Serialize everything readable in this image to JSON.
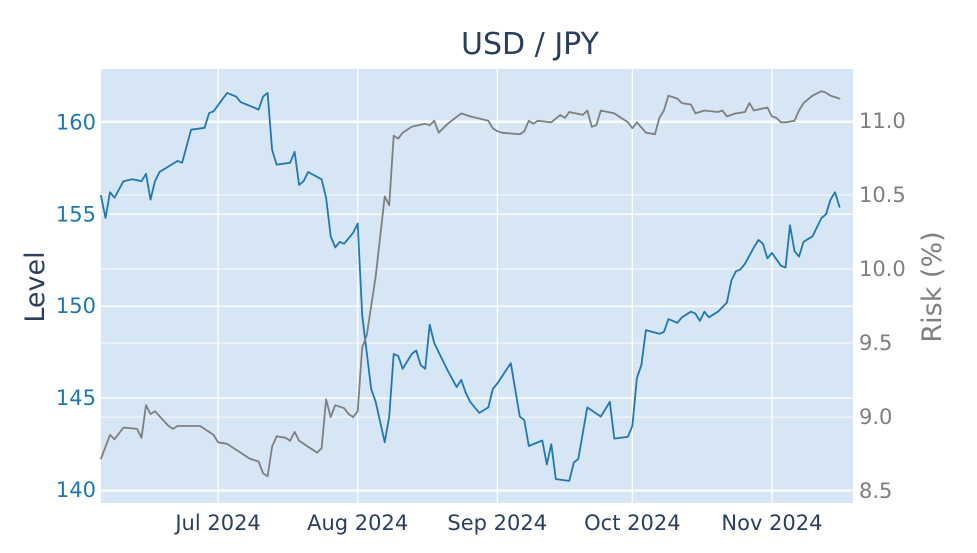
{
  "chart_data": {
    "type": "line",
    "title": "USD / JPY",
    "plot_background": "#d6e6f4",
    "grid": true,
    "legend": "none",
    "xaxis": {
      "type": "date",
      "range": [
        "2024-06-05",
        "2024-11-19"
      ],
      "ticks": [
        {
          "date": "2024-07-01",
          "label": "Jul 2024"
        },
        {
          "date": "2024-08-01",
          "label": "Aug 2024"
        },
        {
          "date": "2024-09-01",
          "label": "Sep 2024"
        },
        {
          "date": "2024-10-01",
          "label": "Oct 2024"
        },
        {
          "date": "2024-11-01",
          "label": "Nov 2024"
        }
      ]
    },
    "yaxis_left": {
      "title": "Level",
      "range": [
        139.3,
        162.9
      ],
      "ticks": [
        140,
        145,
        150,
        155,
        160
      ],
      "tick_labels": [
        "140",
        "145",
        "150",
        "155",
        "160"
      ],
      "color": "#1f77b4"
    },
    "yaxis_right": {
      "title": "Risk (%)",
      "range": [
        8.42,
        11.35
      ],
      "ticks": [
        8.5,
        9.0,
        9.5,
        10.0,
        10.5,
        11.0
      ],
      "tick_labels": [
        "8.5",
        "9.0",
        "9.5",
        "10.0",
        "10.5",
        "11.0"
      ],
      "color": "#7f7f7f"
    },
    "series": [
      {
        "axis": "left",
        "color": "#1f77b4",
        "points": [
          [
            "2024-06-05",
            156.0
          ],
          [
            "2024-06-06",
            154.8
          ],
          [
            "2024-06-07",
            156.2
          ],
          [
            "2024-06-08",
            155.9
          ],
          [
            "2024-06-10",
            156.8
          ],
          [
            "2024-06-12",
            156.9
          ],
          [
            "2024-06-14",
            156.8
          ],
          [
            "2024-06-15",
            157.2
          ],
          [
            "2024-06-16",
            155.8
          ],
          [
            "2024-06-17",
            156.8
          ],
          [
            "2024-06-18",
            157.3
          ],
          [
            "2024-06-20",
            157.6
          ],
          [
            "2024-06-22",
            157.9
          ],
          [
            "2024-06-23",
            157.8
          ],
          [
            "2024-06-25",
            159.6
          ],
          [
            "2024-06-28",
            159.7
          ],
          [
            "2024-06-29",
            160.5
          ],
          [
            "2024-06-30",
            160.6
          ],
          [
            "2024-07-03",
            161.6
          ],
          [
            "2024-07-05",
            161.4
          ],
          [
            "2024-07-06",
            161.1
          ],
          [
            "2024-07-10",
            160.7
          ],
          [
            "2024-07-11",
            161.4
          ],
          [
            "2024-07-12",
            161.6
          ],
          [
            "2024-07-13",
            158.5
          ],
          [
            "2024-07-14",
            157.7
          ],
          [
            "2024-07-17",
            157.8
          ],
          [
            "2024-07-18",
            158.4
          ],
          [
            "2024-07-19",
            156.6
          ],
          [
            "2024-07-20",
            156.8
          ],
          [
            "2024-07-21",
            157.3
          ],
          [
            "2024-07-24",
            156.9
          ],
          [
            "2024-07-25",
            155.9
          ],
          [
            "2024-07-26",
            153.8
          ],
          [
            "2024-07-27",
            153.2
          ],
          [
            "2024-07-28",
            153.5
          ],
          [
            "2024-07-29",
            153.4
          ],
          [
            "2024-07-31",
            154.0
          ],
          [
            "2024-08-01",
            154.5
          ],
          [
            "2024-08-02",
            149.5
          ],
          [
            "2024-08-03",
            147.5
          ],
          [
            "2024-08-04",
            145.5
          ],
          [
            "2024-08-05",
            144.8
          ],
          [
            "2024-08-07",
            142.6
          ],
          [
            "2024-08-08",
            144.0
          ],
          [
            "2024-08-09",
            147.4
          ],
          [
            "2024-08-10",
            147.3
          ],
          [
            "2024-08-11",
            146.6
          ],
          [
            "2024-08-13",
            147.4
          ],
          [
            "2024-08-14",
            147.6
          ],
          [
            "2024-08-15",
            146.8
          ],
          [
            "2024-08-16",
            146.6
          ],
          [
            "2024-08-17",
            149.0
          ],
          [
            "2024-08-18",
            148.0
          ],
          [
            "2024-08-21",
            146.5
          ],
          [
            "2024-08-23",
            145.6
          ],
          [
            "2024-08-24",
            146.0
          ],
          [
            "2024-08-25",
            145.3
          ],
          [
            "2024-08-26",
            144.8
          ],
          [
            "2024-08-28",
            144.2
          ],
          [
            "2024-08-30",
            144.5
          ],
          [
            "2024-08-31",
            145.5
          ],
          [
            "2024-09-01",
            145.8
          ],
          [
            "2024-09-04",
            146.9
          ],
          [
            "2024-09-06",
            144.0
          ],
          [
            "2024-09-07",
            143.8
          ],
          [
            "2024-09-08",
            142.4
          ],
          [
            "2024-09-11",
            142.7
          ],
          [
            "2024-09-12",
            141.4
          ],
          [
            "2024-09-13",
            142.5
          ],
          [
            "2024-09-14",
            140.6
          ],
          [
            "2024-09-17",
            140.5
          ],
          [
            "2024-09-18",
            141.5
          ],
          [
            "2024-09-19",
            141.7
          ],
          [
            "2024-09-21",
            144.5
          ],
          [
            "2024-09-24",
            144.0
          ],
          [
            "2024-09-26",
            144.8
          ],
          [
            "2024-09-27",
            142.8
          ],
          [
            "2024-09-30",
            142.9
          ],
          [
            "2024-10-01",
            143.5
          ],
          [
            "2024-10-02",
            146.1
          ],
          [
            "2024-10-03",
            146.8
          ],
          [
            "2024-10-04",
            148.7
          ],
          [
            "2024-10-07",
            148.5
          ],
          [
            "2024-10-08",
            148.6
          ],
          [
            "2024-10-09",
            149.3
          ],
          [
            "2024-10-10",
            149.2
          ],
          [
            "2024-10-11",
            149.1
          ],
          [
            "2024-10-12",
            149.4
          ],
          [
            "2024-10-14",
            149.7
          ],
          [
            "2024-10-15",
            149.6
          ],
          [
            "2024-10-16",
            149.2
          ],
          [
            "2024-10-17",
            149.7
          ],
          [
            "2024-10-18",
            149.4
          ],
          [
            "2024-10-20",
            149.7
          ],
          [
            "2024-10-22",
            150.2
          ],
          [
            "2024-10-23",
            151.4
          ],
          [
            "2024-10-24",
            151.9
          ],
          [
            "2024-10-25",
            152.0
          ],
          [
            "2024-10-26",
            152.3
          ],
          [
            "2024-10-28",
            153.2
          ],
          [
            "2024-10-29",
            153.6
          ],
          [
            "2024-10-30",
            153.4
          ],
          [
            "2024-10-31",
            152.6
          ],
          [
            "2024-11-01",
            152.9
          ],
          [
            "2024-11-03",
            152.2
          ],
          [
            "2024-11-04",
            152.1
          ],
          [
            "2024-11-05",
            154.4
          ],
          [
            "2024-11-06",
            153.0
          ],
          [
            "2024-11-07",
            152.7
          ],
          [
            "2024-11-08",
            153.5
          ],
          [
            "2024-11-10",
            153.8
          ],
          [
            "2024-11-12",
            154.8
          ],
          [
            "2024-11-13",
            155.0
          ],
          [
            "2024-11-14",
            155.8
          ],
          [
            "2024-11-15",
            156.2
          ],
          [
            "2024-11-16",
            155.4
          ]
        ]
      },
      {
        "axis": "right",
        "color": "#7f7f7f",
        "points": [
          [
            "2024-06-05",
            8.72
          ],
          [
            "2024-06-07",
            8.88
          ],
          [
            "2024-06-08",
            8.85
          ],
          [
            "2024-06-10",
            8.93
          ],
          [
            "2024-06-13",
            8.92
          ],
          [
            "2024-06-14",
            8.86
          ],
          [
            "2024-06-15",
            9.08
          ],
          [
            "2024-06-16",
            9.02
          ],
          [
            "2024-06-17",
            9.04
          ],
          [
            "2024-06-20",
            8.94
          ],
          [
            "2024-06-21",
            8.92
          ],
          [
            "2024-06-22",
            8.94
          ],
          [
            "2024-06-27",
            8.94
          ],
          [
            "2024-06-30",
            8.88
          ],
          [
            "2024-07-01",
            8.83
          ],
          [
            "2024-07-03",
            8.82
          ],
          [
            "2024-07-05",
            8.78
          ],
          [
            "2024-07-06",
            8.76
          ],
          [
            "2024-07-08",
            8.72
          ],
          [
            "2024-07-10",
            8.7
          ],
          [
            "2024-07-11",
            8.62
          ],
          [
            "2024-07-12",
            8.6
          ],
          [
            "2024-07-13",
            8.8
          ],
          [
            "2024-07-14",
            8.87
          ],
          [
            "2024-07-16",
            8.86
          ],
          [
            "2024-07-17",
            8.84
          ],
          [
            "2024-07-18",
            8.9
          ],
          [
            "2024-07-19",
            8.84
          ],
          [
            "2024-07-21",
            8.8
          ],
          [
            "2024-07-23",
            8.76
          ],
          [
            "2024-07-24",
            8.79
          ],
          [
            "2024-07-25",
            9.12
          ],
          [
            "2024-07-26",
            9.0
          ],
          [
            "2024-07-27",
            9.08
          ],
          [
            "2024-07-29",
            9.06
          ],
          [
            "2024-07-30",
            9.02
          ],
          [
            "2024-07-31",
            9.0
          ],
          [
            "2024-08-01",
            9.04
          ],
          [
            "2024-08-02",
            9.47
          ],
          [
            "2024-08-03",
            9.55
          ],
          [
            "2024-08-05",
            9.95
          ],
          [
            "2024-08-07",
            10.49
          ],
          [
            "2024-08-08",
            10.43
          ],
          [
            "2024-08-09",
            10.9
          ],
          [
            "2024-08-10",
            10.88
          ],
          [
            "2024-08-11",
            10.92
          ],
          [
            "2024-08-13",
            10.96
          ],
          [
            "2024-08-16",
            10.98
          ],
          [
            "2024-08-17",
            10.97
          ],
          [
            "2024-08-18",
            11.0
          ],
          [
            "2024-08-19",
            10.92
          ],
          [
            "2024-08-21",
            10.98
          ],
          [
            "2024-08-24",
            11.05
          ],
          [
            "2024-08-26",
            11.03
          ],
          [
            "2024-08-30",
            11.0
          ],
          [
            "2024-08-31",
            10.95
          ],
          [
            "2024-09-01",
            10.93
          ],
          [
            "2024-09-02",
            10.92
          ],
          [
            "2024-09-06",
            10.91
          ],
          [
            "2024-09-07",
            10.93
          ],
          [
            "2024-09-08",
            11.0
          ],
          [
            "2024-09-09",
            10.98
          ],
          [
            "2024-09-10",
            11.0
          ],
          [
            "2024-09-13",
            10.99
          ],
          [
            "2024-09-15",
            11.04
          ],
          [
            "2024-09-16",
            11.02
          ],
          [
            "2024-09-17",
            11.06
          ],
          [
            "2024-09-20",
            11.04
          ],
          [
            "2024-09-21",
            11.07
          ],
          [
            "2024-09-22",
            10.96
          ],
          [
            "2024-09-23",
            10.97
          ],
          [
            "2024-09-24",
            11.07
          ],
          [
            "2024-09-27",
            11.05
          ],
          [
            "2024-09-28",
            11.03
          ],
          [
            "2024-09-30",
            10.99
          ],
          [
            "2024-10-01",
            10.95
          ],
          [
            "2024-10-02",
            10.99
          ],
          [
            "2024-10-04",
            10.92
          ],
          [
            "2024-10-06",
            10.91
          ],
          [
            "2024-10-07",
            11.02
          ],
          [
            "2024-10-08",
            11.07
          ],
          [
            "2024-10-09",
            11.17
          ],
          [
            "2024-10-11",
            11.15
          ],
          [
            "2024-10-12",
            11.12
          ],
          [
            "2024-10-14",
            11.11
          ],
          [
            "2024-10-15",
            11.05
          ],
          [
            "2024-10-17",
            11.07
          ],
          [
            "2024-10-20",
            11.06
          ],
          [
            "2024-10-21",
            11.07
          ],
          [
            "2024-10-22",
            11.03
          ],
          [
            "2024-10-24",
            11.05
          ],
          [
            "2024-10-26",
            11.06
          ],
          [
            "2024-10-27",
            11.12
          ],
          [
            "2024-10-28",
            11.07
          ],
          [
            "2024-10-31",
            11.09
          ],
          [
            "2024-11-01",
            11.03
          ],
          [
            "2024-11-02",
            11.02
          ],
          [
            "2024-11-03",
            10.99
          ],
          [
            "2024-11-04",
            10.99
          ],
          [
            "2024-11-06",
            11.0
          ],
          [
            "2024-11-07",
            11.07
          ],
          [
            "2024-11-08",
            11.12
          ],
          [
            "2024-11-10",
            11.17
          ],
          [
            "2024-11-12",
            11.2
          ],
          [
            "2024-11-13",
            11.19
          ],
          [
            "2024-11-14",
            11.17
          ],
          [
            "2024-11-15",
            11.16
          ],
          [
            "2024-11-16",
            11.15
          ]
        ]
      }
    ]
  }
}
